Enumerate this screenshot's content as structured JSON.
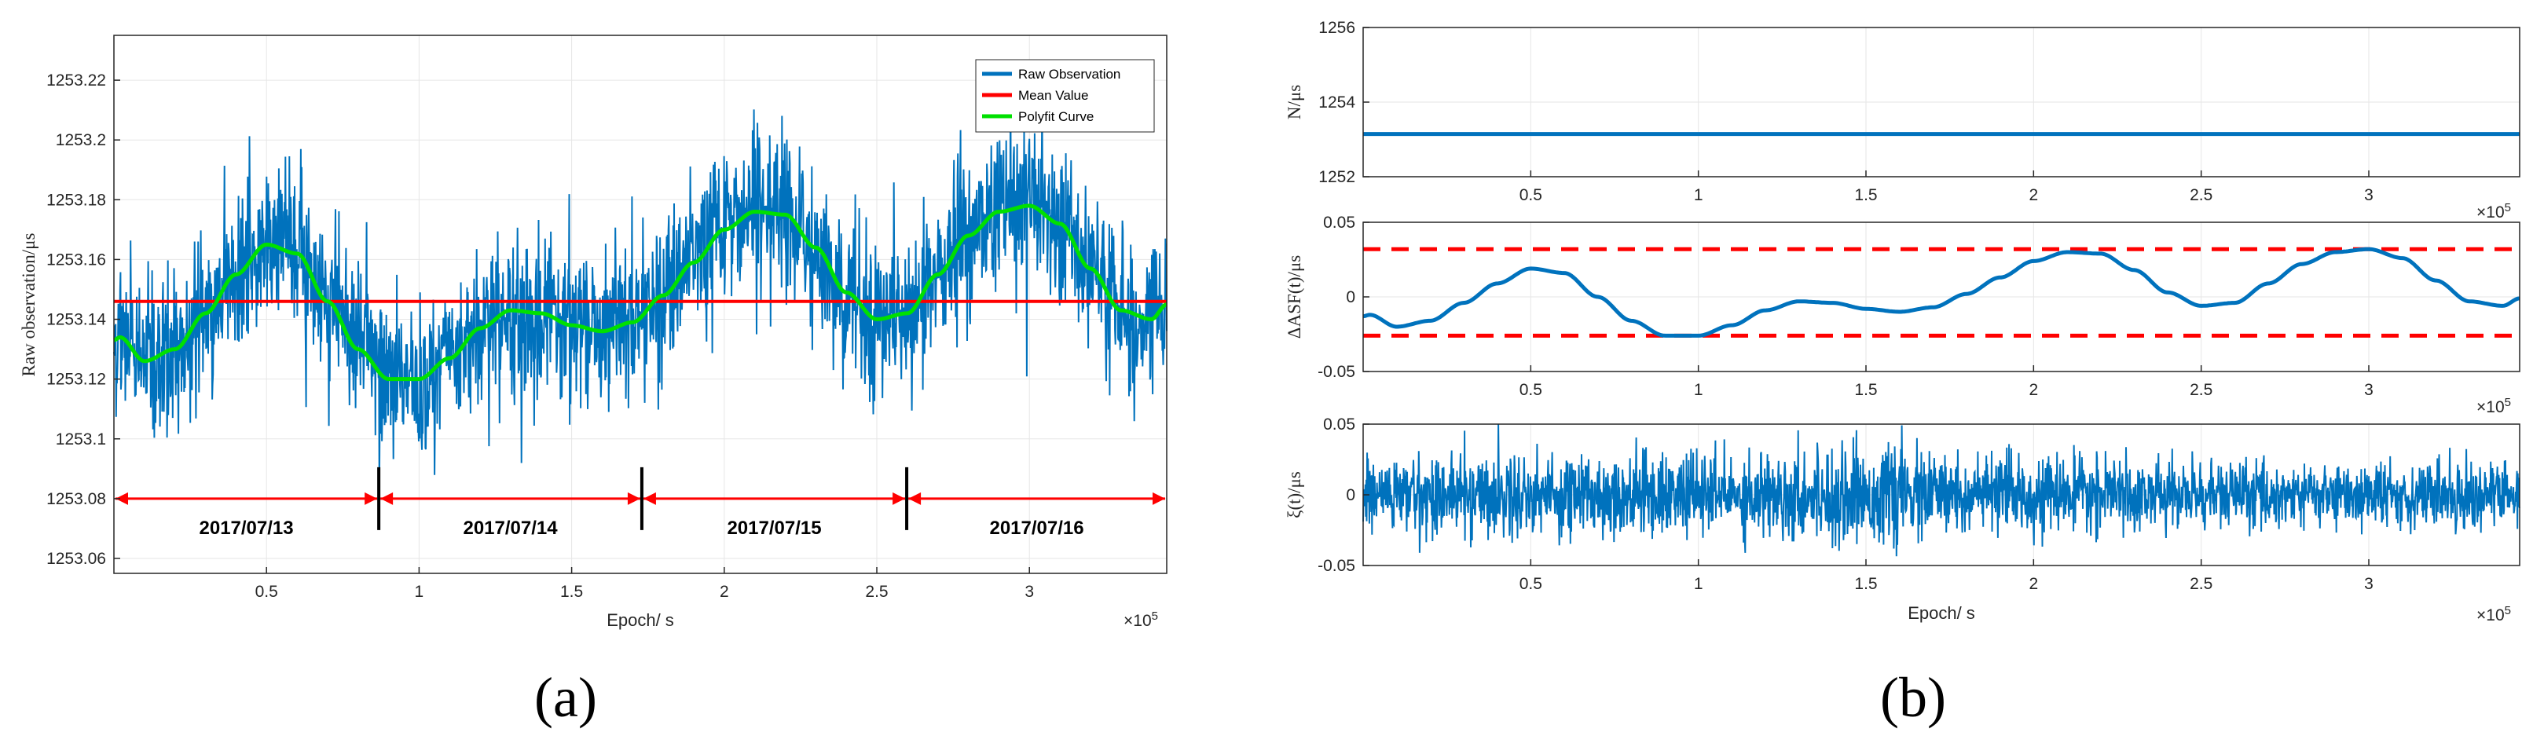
{
  "chart_data": [
    {
      "type": "line",
      "panel": "a",
      "caption": "(a)",
      "xlabel": "Epoch/ s",
      "ylabel": "Raw observation/μs",
      "x_multiplier": "×10",
      "x_exponent": "5",
      "xlim": [
        0,
        3.45
      ],
      "ylim": [
        1253.055,
        1253.235
      ],
      "xticks": [
        0.5,
        1,
        1.5,
        2,
        2.5,
        3
      ],
      "xtick_labels": [
        "0.5",
        "1",
        "1.5",
        "2",
        "2.5",
        "3"
      ],
      "yticks": [
        1253.06,
        1253.08,
        1253.1,
        1253.12,
        1253.14,
        1253.16,
        1253.18,
        1253.2,
        1253.22
      ],
      "ytick_labels": [
        "1253.06",
        "1253.08",
        "1253.1",
        "1253.12",
        "1253.14",
        "1253.16",
        "1253.18",
        "1253.2",
        "1253.22"
      ],
      "legend": [
        "Raw Observation",
        "Mean Value",
        "Polyfit Curve"
      ],
      "legend_position": "top-right",
      "series": [
        {
          "name": "Raw Observation",
          "color": "#0072bd",
          "kind": "noisy-band",
          "center_x": [
            0,
            0.02,
            0.1,
            0.2,
            0.3,
            0.4,
            0.5,
            0.6,
            0.7,
            0.8,
            0.9,
            1.0,
            1.1,
            1.2,
            1.3,
            1.4,
            1.5,
            1.6,
            1.7,
            1.8,
            1.9,
            2.0,
            2.1,
            2.2,
            2.3,
            2.4,
            2.5,
            2.6,
            2.7,
            2.8,
            2.9,
            3.0,
            3.1,
            3.2,
            3.3,
            3.4,
            3.45
          ],
          "center_y": [
            1253.133,
            1253.134,
            1253.126,
            1253.13,
            1253.142,
            1253.155,
            1253.165,
            1253.162,
            1253.146,
            1253.13,
            1253.12,
            1253.12,
            1253.127,
            1253.137,
            1253.143,
            1253.142,
            1253.138,
            1253.136,
            1253.139,
            1253.148,
            1253.159,
            1253.17,
            1253.176,
            1253.175,
            1253.164,
            1253.149,
            1253.14,
            1253.142,
            1253.155,
            1253.168,
            1253.176,
            1253.178,
            1253.172,
            1253.157,
            1253.143,
            1253.14,
            1253.145
          ],
          "noise_amplitude": 0.03
        },
        {
          "name": "Mean Value",
          "color": "#ff0000",
          "x": [
            0,
            3.45
          ],
          "y": [
            1253.146,
            1253.146
          ]
        },
        {
          "name": "Polyfit Curve",
          "color": "#00e000",
          "x": [
            0,
            0.02,
            0.1,
            0.2,
            0.3,
            0.4,
            0.5,
            0.6,
            0.7,
            0.8,
            0.9,
            1.0,
            1.1,
            1.2,
            1.3,
            1.4,
            1.5,
            1.6,
            1.7,
            1.8,
            1.9,
            2.0,
            2.1,
            2.2,
            2.3,
            2.4,
            2.5,
            2.6,
            2.7,
            2.8,
            2.9,
            3.0,
            3.1,
            3.2,
            3.3,
            3.4,
            3.45
          ],
          "y": [
            1253.133,
            1253.134,
            1253.126,
            1253.13,
            1253.142,
            1253.155,
            1253.165,
            1253.162,
            1253.146,
            1253.13,
            1253.12,
            1253.12,
            1253.127,
            1253.137,
            1253.143,
            1253.142,
            1253.138,
            1253.136,
            1253.139,
            1253.148,
            1253.159,
            1253.17,
            1253.176,
            1253.175,
            1253.164,
            1253.149,
            1253.14,
            1253.142,
            1253.155,
            1253.168,
            1253.176,
            1253.178,
            1253.172,
            1253.157,
            1253.143,
            1253.14,
            1253.145
          ]
        }
      ],
      "annotations": {
        "arrow_y": 1253.08,
        "arrow_color": "#ff0000",
        "day_boundaries_x": [
          0,
          0.868,
          1.73,
          2.598,
          3.45
        ],
        "dates": [
          "2017/07/13",
          "2017/07/14",
          "2017/07/15",
          "2017/07/16"
        ]
      }
    },
    {
      "type": "line",
      "panel": "b-top",
      "ylabel": "N/μs",
      "x_multiplier": "×10",
      "x_exponent": "5",
      "xlim": [
        0,
        3.45
      ],
      "ylim": [
        1252,
        1256
      ],
      "xticks": [
        0.5,
        1,
        1.5,
        2,
        2.5,
        3
      ],
      "xtick_labels": [
        "0.5",
        "1",
        "1.5",
        "2",
        "2.5",
        "3"
      ],
      "yticks": [
        1252,
        1254,
        1256
      ],
      "ytick_labels": [
        "1252",
        "1254",
        "1256"
      ],
      "series": [
        {
          "name": "N",
          "color": "#0072bd",
          "x": [
            0,
            3.45
          ],
          "y": [
            1253.146,
            1253.146
          ]
        }
      ]
    },
    {
      "type": "line",
      "panel": "b-middle",
      "ylabel": "ΔASF(t)/μs",
      "x_multiplier": "×10",
      "x_exponent": "5",
      "xlim": [
        0,
        3.45
      ],
      "ylim": [
        -0.05,
        0.05
      ],
      "xticks": [
        0.5,
        1,
        1.5,
        2,
        2.5,
        3
      ],
      "xtick_labels": [
        "0.5",
        "1",
        "1.5",
        "2",
        "2.5",
        "3"
      ],
      "yticks": [
        -0.05,
        0,
        0.05
      ],
      "ytick_labels": [
        "-0.05",
        "0",
        "0.05"
      ],
      "series": [
        {
          "name": "ΔASF(t)",
          "color": "#0072bd",
          "x": [
            0,
            0.02,
            0.1,
            0.2,
            0.3,
            0.4,
            0.5,
            0.6,
            0.7,
            0.8,
            0.9,
            1.0,
            1.1,
            1.2,
            1.3,
            1.4,
            1.5,
            1.6,
            1.7,
            1.8,
            1.9,
            2.0,
            2.1,
            2.2,
            2.3,
            2.4,
            2.5,
            2.6,
            2.7,
            2.8,
            2.9,
            3.0,
            3.1,
            3.2,
            3.3,
            3.4,
            3.45
          ],
          "y": [
            -0.013,
            -0.012,
            -0.02,
            -0.016,
            -0.004,
            0.009,
            0.019,
            0.016,
            0.0,
            -0.016,
            -0.026,
            -0.026,
            -0.019,
            -0.009,
            -0.003,
            -0.004,
            -0.008,
            -0.01,
            -0.007,
            0.002,
            0.013,
            0.024,
            0.03,
            0.029,
            0.018,
            0.003,
            -0.006,
            -0.004,
            0.009,
            0.022,
            0.03,
            0.032,
            0.026,
            0.011,
            -0.003,
            -0.006,
            -0.001
          ]
        },
        {
          "name": "Upper bound",
          "color": "#ff0000",
          "dashed": true,
          "x": [
            0,
            3.45
          ],
          "y": [
            0.032,
            0.032
          ]
        },
        {
          "name": "Lower bound",
          "color": "#ff0000",
          "dashed": true,
          "x": [
            0,
            3.45
          ],
          "y": [
            -0.026,
            -0.026
          ]
        }
      ]
    },
    {
      "type": "line",
      "panel": "b-bottom",
      "ylabel": "ξ(t)/μs",
      "xlabel": "Epoch/ s",
      "x_multiplier": "×10",
      "x_exponent": "5",
      "caption": "(b)",
      "xlim": [
        0,
        3.45
      ],
      "ylim": [
        -0.05,
        0.05
      ],
      "xticks": [
        0.5,
        1,
        1.5,
        2,
        2.5,
        3
      ],
      "xtick_labels": [
        "0.5",
        "1",
        "1.5",
        "2",
        "2.5",
        "3"
      ],
      "yticks": [
        -0.05,
        0,
        0.05
      ],
      "ytick_labels": [
        "-0.05",
        "0",
        "0.05"
      ],
      "series": [
        {
          "name": "ξ(t)",
          "color": "#0072bd",
          "kind": "noise",
          "envelope_x": [
            0,
            0.5,
            1.0,
            1.5,
            2.0,
            2.5,
            3.0,
            3.45
          ],
          "envelope_y": [
            0.03,
            0.036,
            0.034,
            0.04,
            0.03,
            0.028,
            0.026,
            0.03
          ]
        }
      ]
    }
  ]
}
